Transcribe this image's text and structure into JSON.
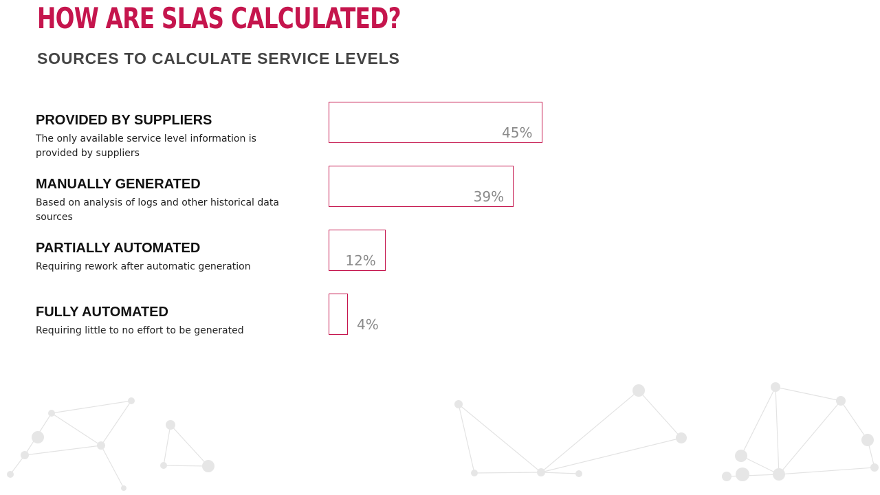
{
  "slide": {
    "title": "HOW ARE SLAS CALCULATED?",
    "subtitle": "SOURCES TO CALCULATE SERVICE LEVELS",
    "accent_color": "#c5154d"
  },
  "chart_data": {
    "type": "bar",
    "orientation": "horizontal",
    "categories": [
      "PROVIDED BY SUPPLIERS",
      "MANUALLY GENERATED",
      "PARTIALLY AUTOMATED",
      "FULLY AUTOMATED"
    ],
    "descriptions": [
      "The only available service level information is provided by suppliers",
      "Based on analysis of logs and other historical data sources",
      "Requiring rework after automatic generation",
      "Requiring little to no effort to be generated"
    ],
    "values": [
      45,
      39,
      12,
      4
    ],
    "value_labels": [
      "45%",
      "39%",
      "12%",
      "4%"
    ],
    "unit": "%",
    "grid": false,
    "legend": "none",
    "bar_style": "outline",
    "bar_color": "#c5154d"
  }
}
